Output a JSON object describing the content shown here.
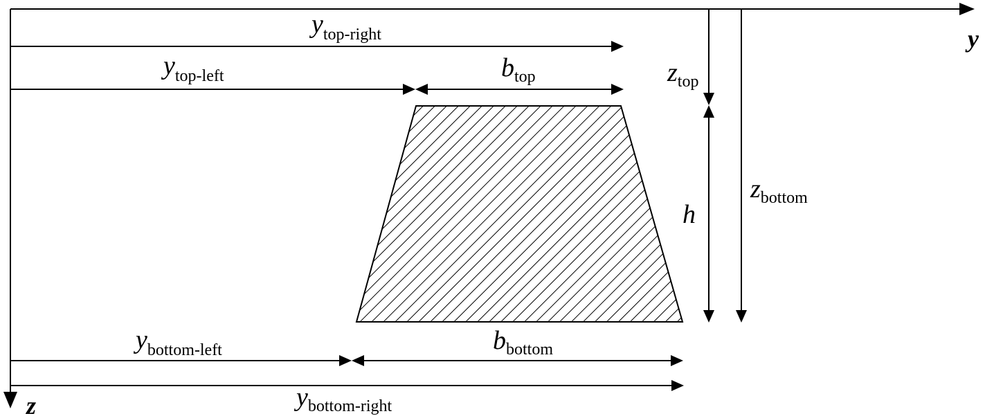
{
  "axes": {
    "y": {
      "name": "y"
    },
    "z": {
      "name": "z"
    }
  },
  "labels": {
    "y_top_right": {
      "symbol": "y",
      "subscript": "top-right"
    },
    "y_top_left": {
      "symbol": "y",
      "subscript": "top-left"
    },
    "b_top": {
      "symbol": "b",
      "subscript": "top"
    },
    "z_top": {
      "symbol": "z",
      "subscript": "top"
    },
    "h": {
      "symbol": "h",
      "subscript": ""
    },
    "z_bottom": {
      "symbol": "z",
      "subscript": "bottom"
    },
    "y_bottom_left": {
      "symbol": "y",
      "subscript": "bottom-left"
    },
    "b_bottom": {
      "symbol": "b",
      "subscript": "bottom"
    },
    "y_bottom_right": {
      "symbol": "y",
      "subscript": "bottom-right"
    }
  },
  "colors": {
    "stroke": "#000000",
    "background": "#ffffff"
  }
}
